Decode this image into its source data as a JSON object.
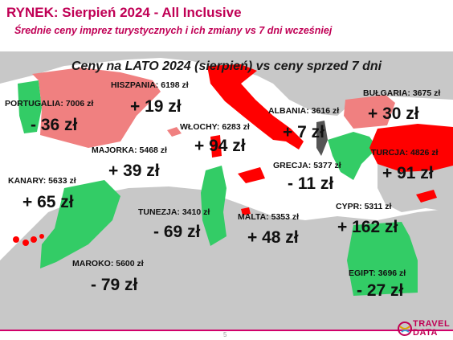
{
  "header": {
    "title": "RYNEK: Sierpień 2024 - All Inclusive",
    "subtitle": "Średnie ceny imprez turystycznych i ich zmiany vs 7 dni wcześniej"
  },
  "map": {
    "heading": "Ceny na LATO 2024 (sierpień) vs ceny sprzed 7 dni",
    "colors": {
      "increase": "#f08080",
      "decrease": "#33cc66",
      "strong_increase": "#ff0000",
      "neutral": "#555555",
      "land": "#c8c8c8",
      "sea": "#ffffff"
    },
    "destinations": [
      {
        "id": "portugalia",
        "name": "PORTUGALIA:",
        "price": "7006 zł",
        "change": "- 36 zł"
      },
      {
        "id": "hiszpania",
        "name": "HISZPANIA:",
        "price": "6198 zł",
        "change": "+ 19 zł"
      },
      {
        "id": "majorka",
        "name": "MAJORKA:",
        "price": "5468 zł",
        "change": "+ 39 zł"
      },
      {
        "id": "kanary",
        "name": "KANARY:",
        "price": "5633 zł",
        "change": "+ 65 zł"
      },
      {
        "id": "maroko",
        "name": "MAROKO:",
        "price": "5600 zł",
        "change": "- 79 zł"
      },
      {
        "id": "wlochy",
        "name": "WŁOCHY:",
        "price": "6283 zł",
        "change": "+ 94 zł"
      },
      {
        "id": "tunezja",
        "name": "TUNEZJA:",
        "price": "3410 zł",
        "change": "- 69 zł"
      },
      {
        "id": "malta",
        "name": "MALTA:",
        "price": "5353 zł",
        "change": "+ 48 zł"
      },
      {
        "id": "albania",
        "name": "ALBANIA:",
        "price": "3616 zł",
        "change": "+ 7 zł"
      },
      {
        "id": "grecja",
        "name": "GRECJA:",
        "price": "5377 zł",
        "change": "- 11 zł"
      },
      {
        "id": "bulgaria",
        "name": "BUŁGARIA:",
        "price": "3675 zł",
        "change": "+ 30 zł"
      },
      {
        "id": "turcja",
        "name": "TURCJA:",
        "price": "4826 zł",
        "change": "+ 91 zł"
      },
      {
        "id": "cypr",
        "name": "CYPR:",
        "price": "5311 zł",
        "change": "+ 162 zł"
      },
      {
        "id": "egipt",
        "name": "EGIPT:",
        "price": "3696 zł",
        "change": "- 27 zł"
      }
    ]
  },
  "footer": {
    "page_number": "5",
    "logo_line1": "TRAVEL",
    "logo_line2": "DATA",
    "logo_icon": "travel-data-globe-icon"
  }
}
